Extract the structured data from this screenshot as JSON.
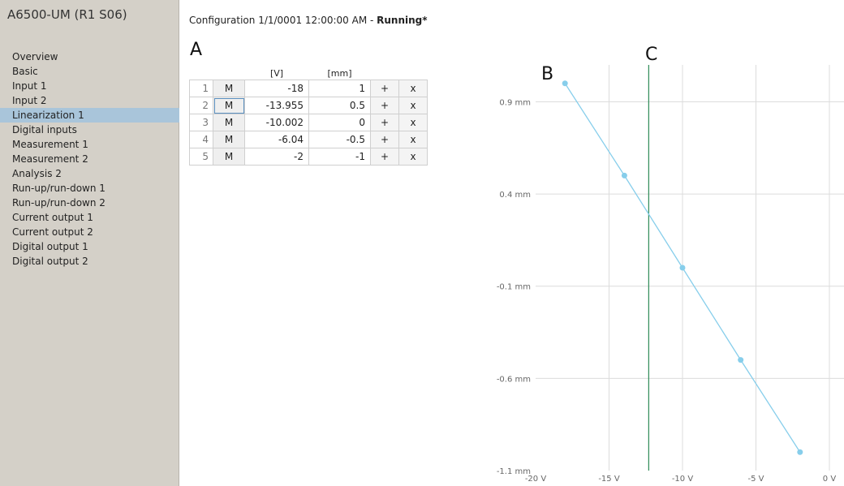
{
  "device": {
    "title": "A6500-UM (R1 S06)"
  },
  "sidebar": {
    "items": [
      {
        "label": "Overview",
        "active": false
      },
      {
        "label": "Basic",
        "active": false
      },
      {
        "label": "Input 1",
        "active": false
      },
      {
        "label": "Input 2",
        "active": false
      },
      {
        "label": "Linearization 1",
        "active": true
      },
      {
        "label": "Digital inputs",
        "active": false
      },
      {
        "label": "Measurement 1",
        "active": false
      },
      {
        "label": "Measurement 2",
        "active": false
      },
      {
        "label": "Analysis 2",
        "active": false
      },
      {
        "label": "Run-up/run-down 1",
        "active": false
      },
      {
        "label": "Run-up/run-down 2",
        "active": false
      },
      {
        "label": "Current output 1",
        "active": false
      },
      {
        "label": "Current output 2",
        "active": false
      },
      {
        "label": "Digital output 1",
        "active": false
      },
      {
        "label": "Digital output 2",
        "active": false
      }
    ],
    "active_color": "#a9c5da"
  },
  "header": {
    "prefix": "Configuration 1/1/0001 12:00:00 AM - ",
    "status": "Running*"
  },
  "markers": {
    "a": "A",
    "b": "B",
    "c": "C"
  },
  "table": {
    "headers": {
      "volts": "[V]",
      "mm": "[mm]"
    },
    "measure_label": "M",
    "add_label": "+",
    "delete_label": "x",
    "rows": [
      {
        "index": "1",
        "volts": "-18",
        "mm": "1"
      },
      {
        "index": "2",
        "volts": "-13.955",
        "mm": "0.5"
      },
      {
        "index": "3",
        "volts": "-10.002",
        "mm": "0"
      },
      {
        "index": "4",
        "volts": "-6.04",
        "mm": "-0.5"
      },
      {
        "index": "5",
        "volts": "-2",
        "mm": "-1"
      }
    ]
  },
  "chart_data": {
    "type": "line",
    "x_ticks": [
      {
        "value": -20,
        "label": "-20 V"
      },
      {
        "value": -15,
        "label": "-15 V"
      },
      {
        "value": -10,
        "label": "-10 V"
      },
      {
        "value": -5,
        "label": "-5 V"
      },
      {
        "value": 0,
        "label": "0 V"
      }
    ],
    "y_ticks": [
      {
        "value": 0.9,
        "label": "0.9 mm"
      },
      {
        "value": 0.4,
        "label": "0.4 mm"
      },
      {
        "value": -0.1,
        "label": "-0.1 mm"
      },
      {
        "value": -0.6,
        "label": "-0.6 mm"
      },
      {
        "value": -1.1,
        "label": "-1.1 mm"
      }
    ],
    "xlim": [
      -20,
      0
    ],
    "ylim": [
      -1.1,
      1.1
    ],
    "points": [
      {
        "x": -18,
        "y": 1
      },
      {
        "x": -13.955,
        "y": 0.5
      },
      {
        "x": -10.002,
        "y": 0
      },
      {
        "x": -6.04,
        "y": -0.5
      },
      {
        "x": -2,
        "y": -1
      }
    ],
    "cursor_x": -12.3,
    "series_color": "#87ceeb",
    "cursor_color": "#2e8b57",
    "grid": true
  }
}
